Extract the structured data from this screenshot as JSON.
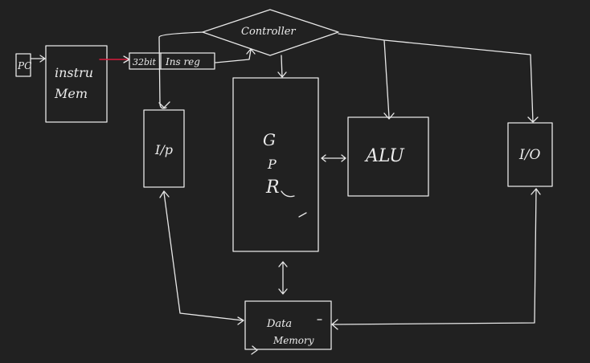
{
  "labels": {
    "pc": "PC",
    "instr_mem_line1": "instru",
    "instr_mem_line2": "Mem",
    "bits": "32bit",
    "instr_reg": "Ins reg",
    "controller": "Controller",
    "input": "I/p",
    "gpr_g": "G",
    "gpr_p": "P",
    "gpr_r": "R",
    "alu": "ALU",
    "output": "I/O",
    "data_memory_line1": "Data",
    "data_memory_line2": "Memory"
  },
  "colors": {
    "background": "#212121",
    "stroke": "#e8e8e8",
    "highlight": "#d81b3c"
  }
}
